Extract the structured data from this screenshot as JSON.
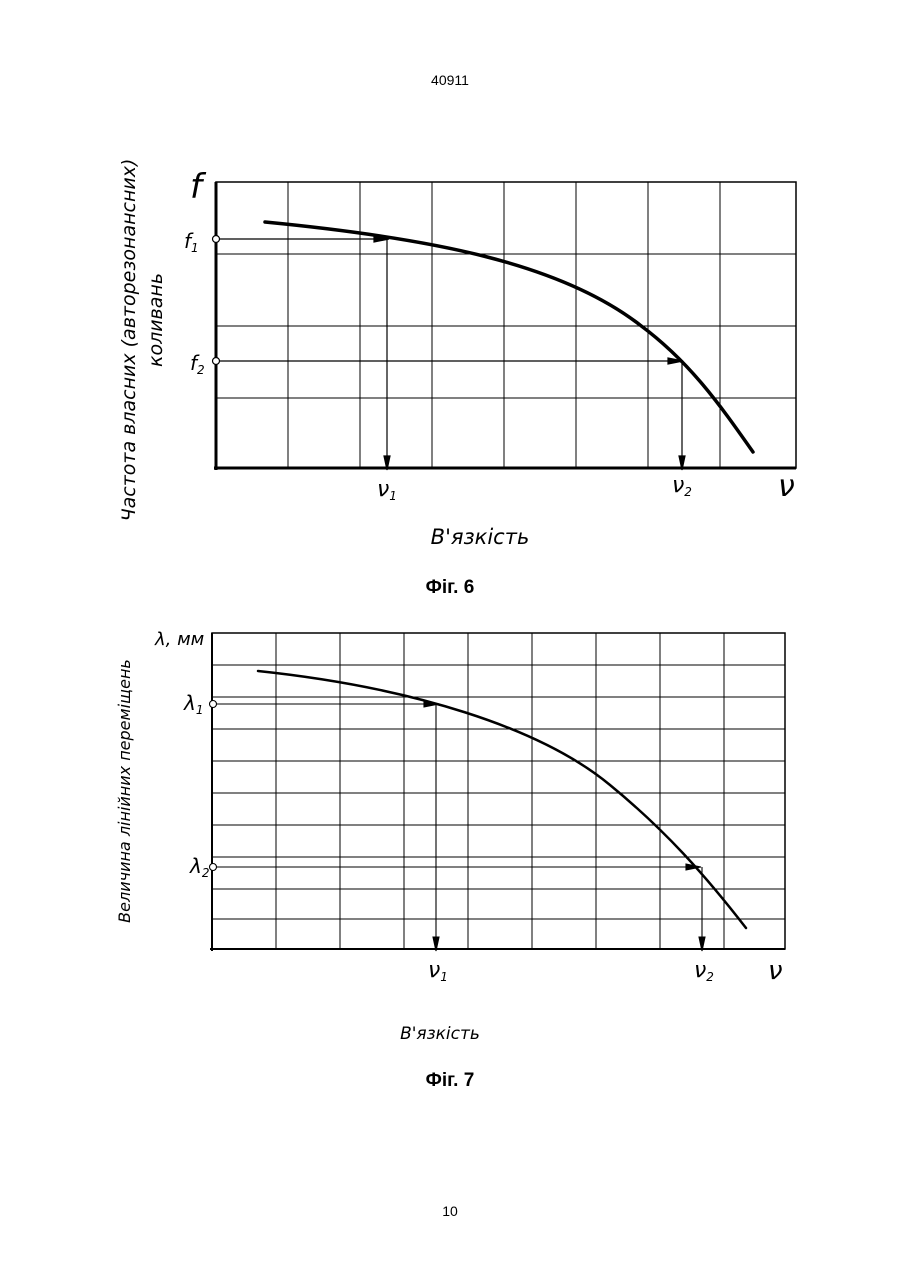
{
  "page": {
    "document_number": "40911",
    "page_number": "10"
  },
  "figures": [
    {
      "caption": "Фіг. 6",
      "y_symbol": "f",
      "x_symbol": "ν",
      "ylabel_line1": "Частота власних (авторезонансних)",
      "ylabel_line2": "коливань",
      "xlabel": "В'язкість",
      "y_markers": [
        {
          "symbol": "f",
          "sub": "1"
        },
        {
          "symbol": "f",
          "sub": "2"
        }
      ],
      "x_markers": [
        {
          "symbol": "ν",
          "sub": "1"
        },
        {
          "symbol": "ν",
          "sub": "2"
        }
      ]
    },
    {
      "caption": "Фіг. 7",
      "y_symbol": "λ, мм",
      "x_symbol": "ν",
      "ylabel_line1": "Величина лінійних переміщень",
      "ylabel_line2": "",
      "xlabel": "В'язкість",
      "y_markers": [
        {
          "symbol": "λ",
          "sub": "1"
        },
        {
          "symbol": "λ",
          "sub": "2"
        }
      ],
      "x_markers": [
        {
          "symbol": "ν",
          "sub": "1"
        },
        {
          "symbol": "ν",
          "sub": "2"
        }
      ]
    }
  ]
}
